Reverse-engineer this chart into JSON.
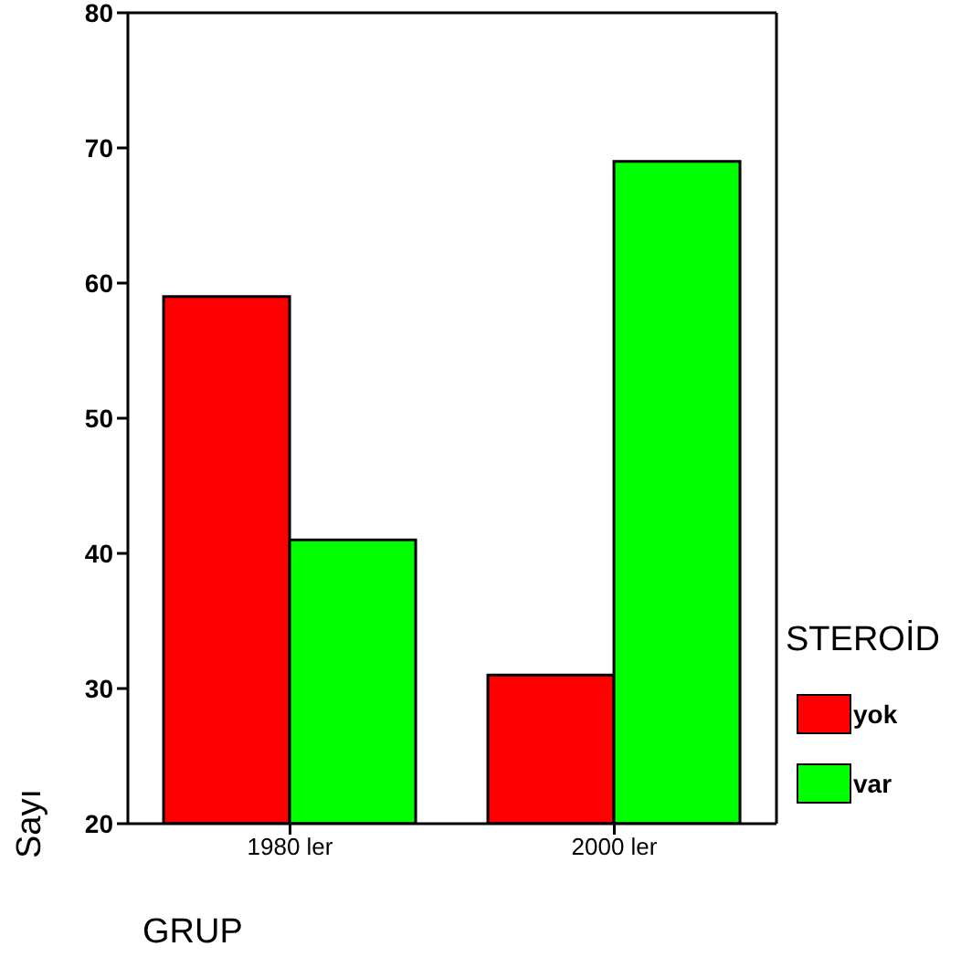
{
  "chart_data": {
    "type": "bar",
    "xlabel": "GRUP",
    "ylabel": "Sayı",
    "legend_title": "STEROİD",
    "categories": [
      "1980 ler",
      "2000 ler"
    ],
    "series": [
      {
        "name": "yok",
        "color": "#ff0000",
        "values": [
          59,
          31
        ]
      },
      {
        "name": "var",
        "color": "#00ff00",
        "values": [
          41,
          69
        ]
      }
    ],
    "ylim": [
      20,
      80
    ],
    "yticks": [
      20,
      30,
      40,
      50,
      60,
      70,
      80
    ],
    "grid": false,
    "legend": "right"
  }
}
